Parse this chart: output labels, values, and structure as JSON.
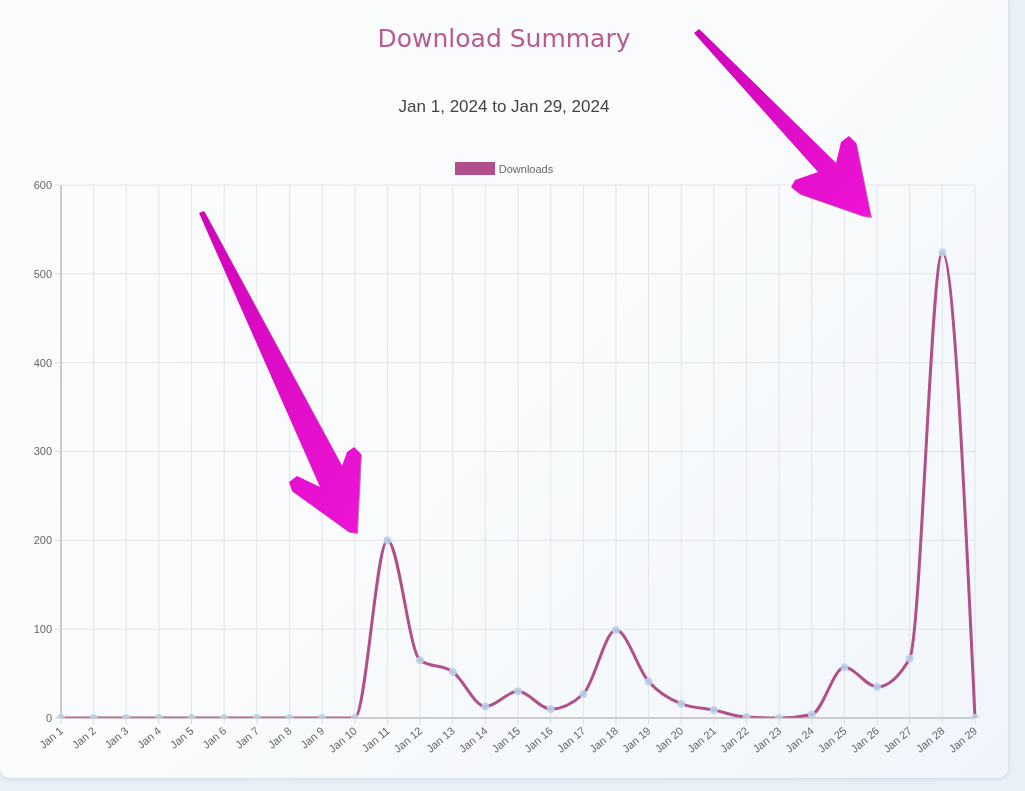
{
  "chart_data": {
    "type": "line",
    "title": "Download Summary",
    "subtitle": "Jan 1, 2024 to Jan 29, 2024",
    "categories": [
      "Jan 1",
      "Jan 2",
      "Jan 3",
      "Jan 4",
      "Jan 5",
      "Jan 6",
      "Jan 7",
      "Jan 8",
      "Jan 9",
      "Jan 10",
      "Jan 11",
      "Jan 12",
      "Jan 13",
      "Jan 14",
      "Jan 15",
      "Jan 16",
      "Jan 17",
      "Jan 18",
      "Jan 19",
      "Jan 20",
      "Jan 21",
      "Jan 22",
      "Jan 23",
      "Jan 24",
      "Jan 25",
      "Jan 26",
      "Jan 27",
      "Jan 28",
      "Jan 29"
    ],
    "series": [
      {
        "name": "Downloads",
        "color": "#b04f8a",
        "values": [
          0,
          0,
          0,
          0,
          0,
          0,
          0,
          0,
          0,
          0,
          200,
          65,
          52,
          13,
          30,
          10,
          27,
          99,
          41,
          16,
          9,
          1,
          0,
          4,
          57,
          35,
          67,
          524,
          0
        ]
      }
    ],
    "ylim": [
      0,
      600
    ],
    "yticks": [
      0,
      100,
      200,
      300,
      400,
      500,
      600
    ],
    "grid": true,
    "legend": "top",
    "marker": "circle",
    "line_style": "solid"
  }
}
